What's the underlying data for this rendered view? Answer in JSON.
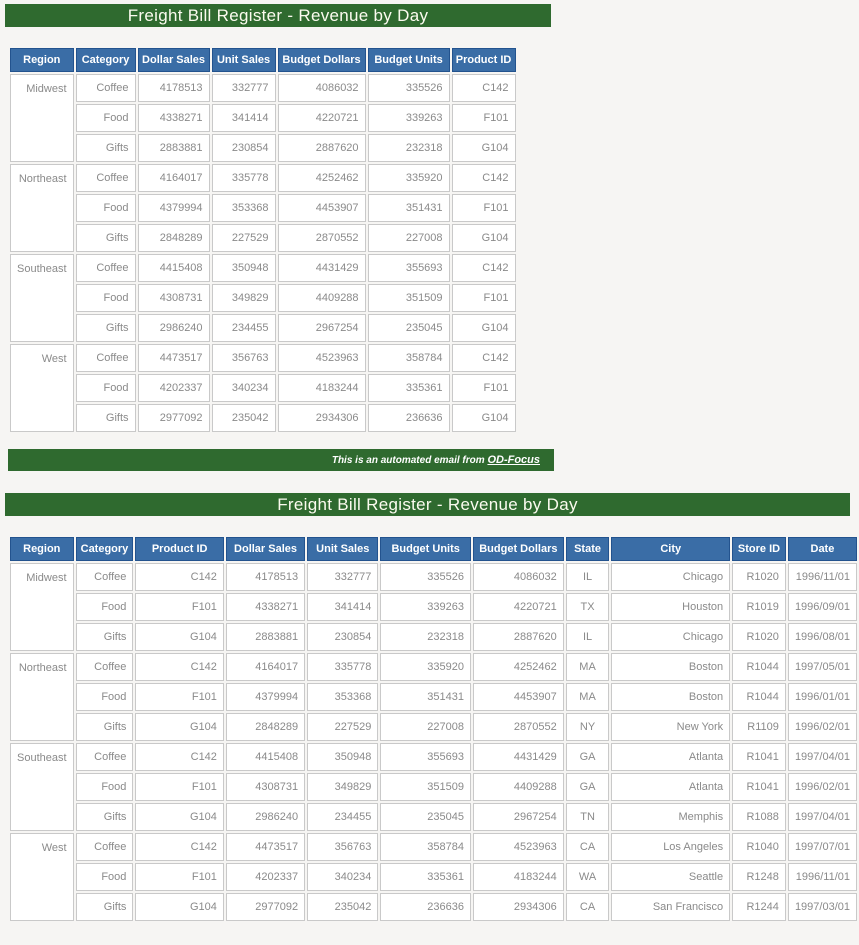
{
  "report_title": "Freight Bill Register - Revenue by Day",
  "banner": {
    "prefix": "This is an automated email from ",
    "link_label": "OD-Focus"
  },
  "colors": {
    "title_bar_green": "#2f6a2f",
    "header_blue": "#3a6da6",
    "cell_text_gray": "#8a8a8a",
    "page_background": "#f6f5f3"
  },
  "table1": {
    "title": "Freight Bill Register - Revenue by Day",
    "columns": [
      "Region",
      "Category",
      "Dollar Sales",
      "Unit Sales",
      "Budget Dollars",
      "Budget Units",
      "Product ID"
    ],
    "groups": [
      {
        "region": "Midwest",
        "rows": [
          [
            "Coffee",
            "4178513",
            "332777",
            "4086032",
            "335526",
            "C142"
          ],
          [
            "Food",
            "4338271",
            "341414",
            "4220721",
            "339263",
            "F101"
          ],
          [
            "Gifts",
            "2883881",
            "230854",
            "2887620",
            "232318",
            "G104"
          ]
        ]
      },
      {
        "region": "Northeast",
        "rows": [
          [
            "Coffee",
            "4164017",
            "335778",
            "4252462",
            "335920",
            "C142"
          ],
          [
            "Food",
            "4379994",
            "353368",
            "4453907",
            "351431",
            "F101"
          ],
          [
            "Gifts",
            "2848289",
            "227529",
            "2870552",
            "227008",
            "G104"
          ]
        ]
      },
      {
        "region": "Southeast",
        "rows": [
          [
            "Coffee",
            "4415408",
            "350948",
            "4431429",
            "355693",
            "C142"
          ],
          [
            "Food",
            "4308731",
            "349829",
            "4409288",
            "351509",
            "F101"
          ],
          [
            "Gifts",
            "2986240",
            "234455",
            "2967254",
            "235045",
            "G104"
          ]
        ]
      },
      {
        "region": "West",
        "rows": [
          [
            "Coffee",
            "4473517",
            "356763",
            "4523963",
            "358784",
            "C142"
          ],
          [
            "Food",
            "4202337",
            "340234",
            "4183244",
            "335361",
            "F101"
          ],
          [
            "Gifts",
            "2977092",
            "235042",
            "2934306",
            "236636",
            "G104"
          ]
        ]
      }
    ]
  },
  "table2": {
    "title": "Freight Bill Register - Revenue by Day",
    "columns": [
      "Region",
      "Category",
      "Product ID",
      "Dollar Sales",
      "Unit Sales",
      "Budget Units",
      "Budget Dollars",
      "State",
      "City",
      "Store ID",
      "Date"
    ],
    "center_col_index": 6,
    "groups": [
      {
        "region": "Midwest",
        "rows": [
          [
            "Coffee",
            "C142",
            "4178513",
            "332777",
            "335526",
            "4086032",
            "IL",
            "Chicago",
            "R1020",
            "1996/11/01"
          ],
          [
            "Food",
            "F101",
            "4338271",
            "341414",
            "339263",
            "4220721",
            "TX",
            "Houston",
            "R1019",
            "1996/09/01"
          ],
          [
            "Gifts",
            "G104",
            "2883881",
            "230854",
            "232318",
            "2887620",
            "IL",
            "Chicago",
            "R1020",
            "1996/08/01"
          ]
        ]
      },
      {
        "region": "Northeast",
        "rows": [
          [
            "Coffee",
            "C142",
            "4164017",
            "335778",
            "335920",
            "4252462",
            "MA",
            "Boston",
            "R1044",
            "1997/05/01"
          ],
          [
            "Food",
            "F101",
            "4379994",
            "353368",
            "351431",
            "4453907",
            "MA",
            "Boston",
            "R1044",
            "1996/01/01"
          ],
          [
            "Gifts",
            "G104",
            "2848289",
            "227529",
            "227008",
            "2870552",
            "NY",
            "New York",
            "R1109",
            "1996/02/01"
          ]
        ]
      },
      {
        "region": "Southeast",
        "rows": [
          [
            "Coffee",
            "C142",
            "4415408",
            "350948",
            "355693",
            "4431429",
            "GA",
            "Atlanta",
            "R1041",
            "1997/04/01"
          ],
          [
            "Food",
            "F101",
            "4308731",
            "349829",
            "351509",
            "4409288",
            "GA",
            "Atlanta",
            "R1041",
            "1996/02/01"
          ],
          [
            "Gifts",
            "G104",
            "2986240",
            "234455",
            "235045",
            "2967254",
            "TN",
            "Memphis",
            "R1088",
            "1997/04/01"
          ]
        ]
      },
      {
        "region": "West",
        "rows": [
          [
            "Coffee",
            "C142",
            "4473517",
            "356763",
            "358784",
            "4523963",
            "CA",
            "Los Angeles",
            "R1040",
            "1997/07/01"
          ],
          [
            "Food",
            "F101",
            "4202337",
            "340234",
            "335361",
            "4183244",
            "WA",
            "Seattle",
            "R1248",
            "1996/11/01"
          ],
          [
            "Gifts",
            "G104",
            "2977092",
            "235042",
            "236636",
            "2934306",
            "CA",
            "San Francisco",
            "R1244",
            "1997/03/01"
          ]
        ]
      }
    ]
  }
}
